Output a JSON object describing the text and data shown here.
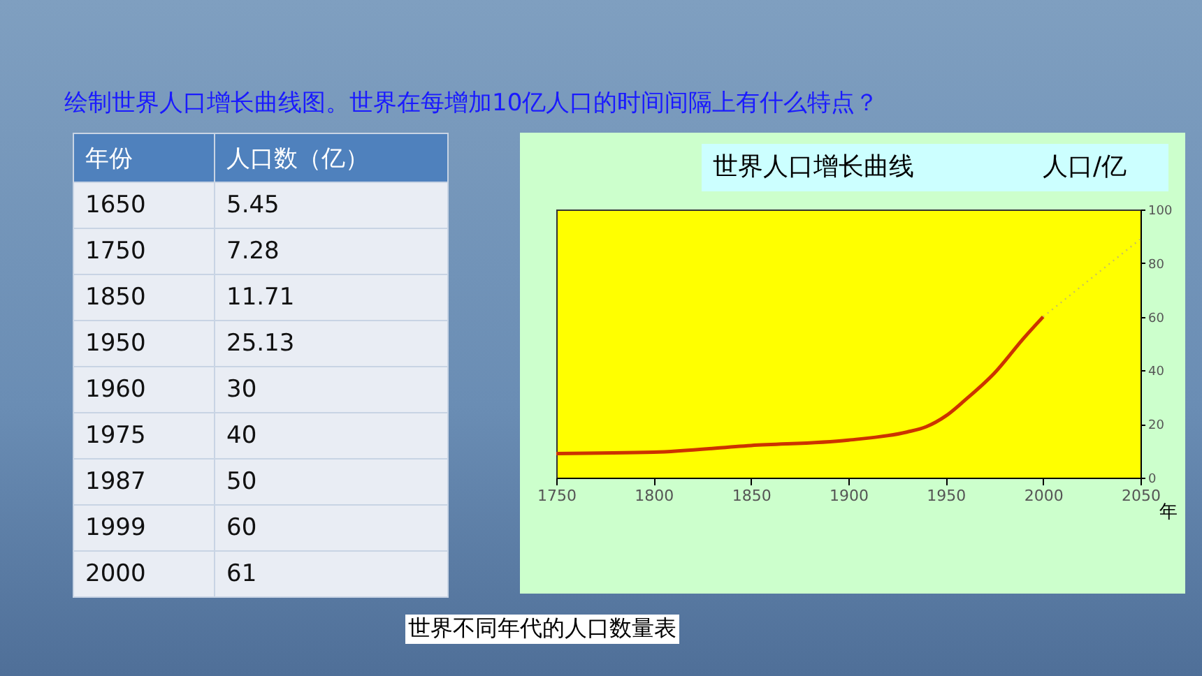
{
  "chart_data": {
    "type": "line",
    "title": "世界人口增长曲线",
    "ylabel": "人口/亿",
    "xlabel": "年",
    "xlim": [
      1750,
      2050
    ],
    "xticks": [
      1750,
      1800,
      1850,
      1900,
      1950,
      2000,
      2050
    ],
    "ylim": [
      0,
      100
    ],
    "yticks": [
      0,
      20,
      40,
      60,
      80,
      100
    ],
    "grid": false,
    "marker": "none",
    "annotations": [
      "绘制世界人口增长曲线图。世界在每增加10亿人口的时间间隔上有什么特点？",
      "年份",
      "人口数（亿）",
      "1650",
      "5.45",
      "1750",
      "7.28",
      "1850",
      "11.71",
      "1950",
      "25.13",
      "1960",
      "30",
      "1975",
      "40",
      "1987",
      "50",
      "1999",
      "60",
      "2000",
      "61",
      "世界不同年代的人口数量表"
    ],
    "series": [
      {
        "color": "#cc3300",
        "line_style": "solid",
        "x": [
          1750,
          1800,
          1850,
          1900,
          1930,
          1940,
          1950,
          1960,
          1975,
          1990,
          2000
        ],
        "values": [
          9,
          9.5,
          12,
          14,
          17,
          19,
          23,
          29,
          39,
          52,
          60
        ]
      },
      {
        "color": "#c8c060",
        "line_style": "dotted",
        "x": [
          2000,
          2050
        ],
        "values": [
          60,
          89
        ]
      }
    ]
  }
}
